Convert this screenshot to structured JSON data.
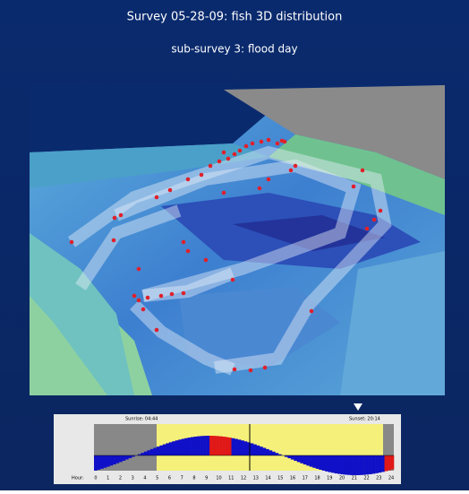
{
  "header": {
    "title": "Survey 05-28-09: fish 3D distribution",
    "subtitle": "sub-survey 3:  flood  day"
  },
  "timeline": {
    "sunrise": "Sunrise: 04:44",
    "sunset": "Sunset: 20:14",
    "hour_label": "Hour:",
    "hours": [
      0,
      1,
      2,
      3,
      4,
      5,
      6,
      7,
      8,
      9,
      10,
      11,
      12,
      13,
      14,
      15,
      16,
      17,
      18,
      19,
      20,
      21,
      22,
      23,
      24
    ]
  }
}
